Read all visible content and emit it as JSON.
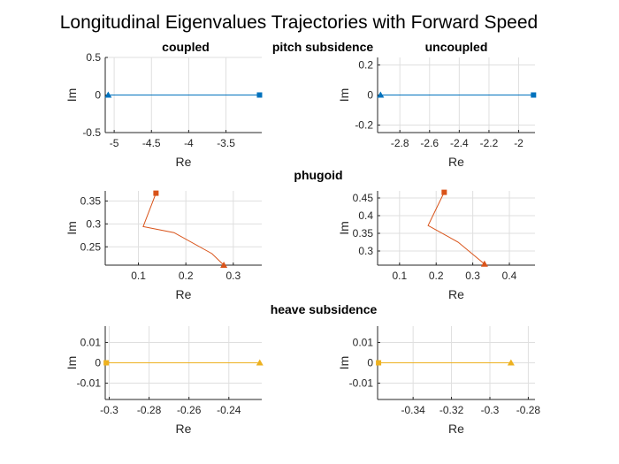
{
  "figure_title": "Longitudinal Eigenvalues Trajectories with Forward Speed",
  "column_titles": {
    "left": "coupled",
    "right": "uncoupled"
  },
  "row_titles": [
    "pitch subsidence",
    "phugoid",
    "heave subsidence"
  ],
  "colors": {
    "pitch": "#0072BD",
    "phugoid": "#D95319",
    "heave": "#EDB120",
    "grid": "#dfdfdf",
    "axis": "#262626"
  },
  "chart_data": [
    {
      "id": "pitch-coupled",
      "type": "line",
      "xlabel": "Re",
      "ylabel": "Im",
      "xlim": [
        -5.12,
        -3.02
      ],
      "ylim": [
        -0.5,
        0.5
      ],
      "xticks": [
        -5,
        -4.5,
        -4,
        -3.5
      ],
      "xtick_labels": [
        "-5",
        "-4.5",
        "-4",
        "-3.5"
      ],
      "yticks": [
        -0.5,
        0,
        0.5
      ],
      "ytick_labels": [
        "-0.5",
        "0",
        "0.5"
      ],
      "series": [
        {
          "color": "#0072BD",
          "x": [
            -5.08,
            -3.05
          ],
          "y": [
            0,
            0
          ],
          "start_marker": "triangle",
          "end_marker": "square"
        }
      ]
    },
    {
      "id": "pitch-uncoupled",
      "type": "line",
      "xlabel": "Re",
      "ylabel": "Im",
      "xlim": [
        -2.95,
        -1.89
      ],
      "ylim": [
        -0.25,
        0.25
      ],
      "xticks": [
        -2.8,
        -2.6,
        -2.4,
        -2.2,
        -2
      ],
      "xtick_labels": [
        "-2.8",
        "-2.6",
        "-2.4",
        "-2.2",
        "-2"
      ],
      "yticks": [
        -0.2,
        0,
        0.2
      ],
      "ytick_labels": [
        "-0.2",
        "0",
        "0.2"
      ],
      "series": [
        {
          "color": "#0072BD",
          "x": [
            -2.93,
            -1.9
          ],
          "y": [
            0,
            0
          ],
          "start_marker": "triangle",
          "end_marker": "square"
        }
      ]
    },
    {
      "id": "phugoid-coupled",
      "type": "line",
      "xlabel": "Re",
      "ylabel": "Im",
      "xlim": [
        0.03,
        0.36
      ],
      "ylim": [
        0.21,
        0.372
      ],
      "xticks": [
        0.1,
        0.2,
        0.3
      ],
      "xtick_labels": [
        "0.1",
        "0.2",
        "0.3"
      ],
      "yticks": [
        0.25,
        0.3,
        0.35
      ],
      "ytick_labels": [
        "0.25",
        "0.3",
        "0.35"
      ],
      "series": [
        {
          "color": "#D95319",
          "x": [
            0.28,
            0.255,
            0.175,
            0.11,
            0.137
          ],
          "y": [
            0.21,
            0.235,
            0.281,
            0.294,
            0.367
          ],
          "start_marker": "triangle",
          "end_marker": "square"
        }
      ]
    },
    {
      "id": "phugoid-uncoupled",
      "type": "line",
      "xlabel": "Re",
      "ylabel": "Im",
      "xlim": [
        0.04,
        0.47
      ],
      "ylim": [
        0.26,
        0.47
      ],
      "xticks": [
        0.1,
        0.2,
        0.3,
        0.4
      ],
      "xtick_labels": [
        "0.1",
        "0.2",
        "0.3",
        "0.4"
      ],
      "yticks": [
        0.3,
        0.35,
        0.4,
        0.45
      ],
      "ytick_labels": [
        "0.3",
        "0.35",
        "0.4",
        "0.45"
      ],
      "series": [
        {
          "color": "#D95319",
          "x": [
            0.332,
            0.26,
            0.178,
            0.222
          ],
          "y": [
            0.263,
            0.325,
            0.372,
            0.466
          ],
          "start_marker": "triangle",
          "end_marker": "square"
        }
      ]
    },
    {
      "id": "heave-coupled",
      "type": "line",
      "xlabel": "Re",
      "ylabel": "Im",
      "xlim": [
        -0.302,
        -0.2235
      ],
      "ylim": [
        -0.018,
        0.018
      ],
      "xticks": [
        -0.3,
        -0.28,
        -0.26,
        -0.24
      ],
      "xtick_labels": [
        "-0.3",
        "-0.28",
        "-0.26",
        "-0.24"
      ],
      "yticks": [
        -0.01,
        0,
        0.01
      ],
      "ytick_labels": [
        "-0.01",
        "0",
        "0.01"
      ],
      "series": [
        {
          "color": "#EDB120",
          "x": [
            -0.3015,
            -0.2245
          ],
          "y": [
            0,
            0
          ],
          "start_marker": "square",
          "end_marker": "triangle"
        }
      ]
    },
    {
      "id": "heave-uncoupled",
      "type": "line",
      "xlabel": "Re",
      "ylabel": "Im",
      "xlim": [
        -0.3585,
        -0.2765
      ],
      "ylim": [
        -0.018,
        0.018
      ],
      "xticks": [
        -0.34,
        -0.32,
        -0.3,
        -0.28
      ],
      "xtick_labels": [
        "-0.34",
        "-0.32",
        "-0.3",
        "-0.28"
      ],
      "yticks": [
        -0.01,
        0,
        0.01
      ],
      "ytick_labels": [
        "-0.01",
        "0",
        "0.01"
      ],
      "series": [
        {
          "color": "#EDB120",
          "x": [
            -0.358,
            -0.289
          ],
          "y": [
            0,
            0
          ],
          "start_marker": "square",
          "end_marker": "triangle"
        }
      ]
    }
  ]
}
